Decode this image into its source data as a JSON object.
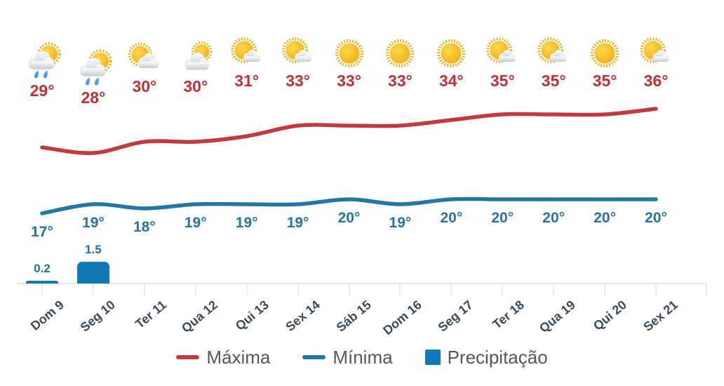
{
  "chart_data": {
    "type": "line",
    "title": "",
    "xlabel": "",
    "ylabel": "",
    "grid": "off",
    "legend_position": "bottom",
    "categories": [
      "Dom 9",
      "Seg 10",
      "Ter 11",
      "Qua 12",
      "Qui 13",
      "Sex 14",
      "Sáb 15",
      "Dom 16",
      "Seg 17",
      "Ter 18",
      "Qua 19",
      "Qui 20",
      "Sex 21"
    ],
    "series": [
      {
        "name": "Máxima",
        "type": "line",
        "color": "#c33a3e",
        "unit": "°",
        "values": [
          29,
          28,
          30,
          30,
          31,
          33,
          33,
          33,
          34,
          35,
          35,
          35,
          36
        ]
      },
      {
        "name": "Mínima",
        "type": "line",
        "color": "#2377a8",
        "unit": "°",
        "values": [
          17,
          19,
          18,
          19,
          19,
          19,
          20,
          19,
          20,
          20,
          20,
          20,
          20
        ]
      },
      {
        "name": "Precipitação",
        "type": "bar",
        "color": "#1079b6",
        "unit": "",
        "values": [
          0.2,
          1.5,
          0,
          0,
          0,
          0,
          0,
          0,
          0,
          0,
          0,
          0,
          0
        ]
      }
    ],
    "weather_icons": [
      "rain",
      "rain",
      "sun-cloud",
      "cloud-sun",
      "sun-small-cloud",
      "sun-small-cloud",
      "sun",
      "sun",
      "sun",
      "sun-small-cloud",
      "sun-small-cloud",
      "sun",
      "sun-small-cloud"
    ]
  },
  "legend": {
    "maxima": "Máxima",
    "minima": "Mínima",
    "precipitacao": "Precipitação"
  },
  "colors": {
    "max_line": "#c33a3e",
    "max_label": "#c22f36",
    "min_line": "#2377a8",
    "min_label": "#2574a5",
    "precip_bar": "#1079b6",
    "precip_label": "#1e6fa5",
    "axis_label": "#394a59",
    "axis_line": "#e8e8e8",
    "tick": "#ececec",
    "legend_text": "#54575b"
  }
}
